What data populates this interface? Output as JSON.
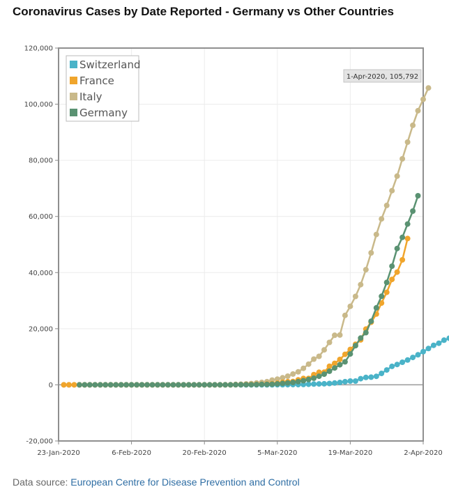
{
  "page": {
    "title": "Coronavirus Cases by Date Reported - Germany vs Other Countries",
    "source_label": "Data source:",
    "source_link": "European Centre for Disease Prevention and Control"
  },
  "chart_data": {
    "type": "line",
    "title": "Coronavirus Cases by Date Reported - Germany vs Other Countries",
    "xlabel": "",
    "ylabel": "",
    "x_start": "2020-01-23",
    "x_ticks": [
      "23-Jan-2020",
      "6-Feb-2020",
      "20-Feb-2020",
      "5-Mar-2020",
      "19-Mar-2020",
      "2-Apr-2020"
    ],
    "x_tick_days": [
      0,
      14,
      28,
      42,
      56,
      70
    ],
    "xlim_days": [
      0,
      70
    ],
    "ylim": [
      -20000,
      120000
    ],
    "y_ticks": [
      -20000,
      0,
      20000,
      40000,
      60000,
      80000,
      100000,
      120000
    ],
    "y_tick_labels": [
      "-20,000",
      "0",
      "20,000",
      "40,000",
      "60,000",
      "80,000",
      "100,000",
      "120,000"
    ],
    "legend": {
      "placement": "top-left",
      "entries": [
        "Switzerland",
        "France",
        "Italy",
        "Germany"
      ]
    },
    "tooltip": {
      "text": "1-Apr-2020, 105,792",
      "series": "Italy",
      "day": 69,
      "value": 105792
    },
    "series": [
      {
        "name": "Switzerland",
        "color": "#4ab3c8",
        "start_day": 35,
        "values": [
          0,
          1,
          1,
          8,
          8,
          15,
          18,
          27,
          42,
          58,
          73,
          87,
          120,
          214,
          268,
          337,
          374,
          491,
          652,
          858,
          1125,
          1359,
          1359,
          2200,
          2650,
          2742,
          3028,
          4075,
          5294,
          6575,
          7245,
          8060,
          8836,
          9765,
          10714,
          11811,
          12928,
          14076,
          14829,
          15922,
          16605
        ]
      },
      {
        "name": "France",
        "color": "#f0a52c",
        "start_day": 1,
        "values": [
          0,
          0,
          3,
          4,
          5,
          5,
          5,
          6,
          6,
          6,
          6,
          6,
          6,
          6,
          11,
          11,
          11,
          11,
          11,
          11,
          11,
          11,
          11,
          12,
          12,
          12,
          12,
          12,
          12,
          12,
          12,
          14,
          18,
          38,
          57,
          100,
          130,
          191,
          212,
          285,
          423,
          613,
          949,
          1126,
          1209,
          1784,
          2281,
          2281,
          3661,
          4469,
          4499,
          6633,
          7652,
          9043,
          10871,
          12612,
          14459,
          16018,
          19856,
          22304,
          25233,
          29155,
          32964,
          37575,
          40174,
          44550,
          52128
        ]
      },
      {
        "name": "Italy",
        "color": "#c9b98a",
        "start_day": 1,
        "values": [
          0,
          0,
          0,
          0,
          0,
          0,
          0,
          0,
          2,
          2,
          2,
          2,
          2,
          2,
          2,
          3,
          3,
          3,
          3,
          3,
          3,
          3,
          3,
          3,
          3,
          3,
          3,
          3,
          3,
          3,
          3,
          20,
          62,
          155,
          229,
          322,
          453,
          655,
          888,
          1128,
          1694,
          2036,
          2502,
          3089,
          3858,
          4636,
          5883,
          7375,
          9172,
          10149,
          12462,
          15113,
          17660,
          17750,
          24747,
          27980,
          31506,
          35713,
          41035,
          47021,
          53578,
          59138,
          63927,
          69176,
          74386,
          80539,
          86498,
          92472,
          97689,
          101739,
          105792
        ]
      },
      {
        "name": "Germany",
        "color": "#5a9272",
        "start_day": 4,
        "values": [
          0,
          1,
          4,
          4,
          4,
          5,
          8,
          10,
          12,
          12,
          12,
          12,
          13,
          14,
          14,
          16,
          16,
          16,
          16,
          16,
          16,
          16,
          16,
          16,
          16,
          16,
          16,
          16,
          16,
          18,
          21,
          26,
          53,
          66,
          117,
          150,
          188,
          240,
          349,
          534,
          684,
          847,
          1112,
          1460,
          1884,
          2369,
          3062,
          3795,
          4838,
          6012,
          7156,
          8198,
          10999,
          13957,
          16662,
          18610,
          22672,
          27436,
          31554,
          36508,
          42288,
          48582,
          52547,
          57298,
          61913,
          67366
        ]
      }
    ]
  }
}
